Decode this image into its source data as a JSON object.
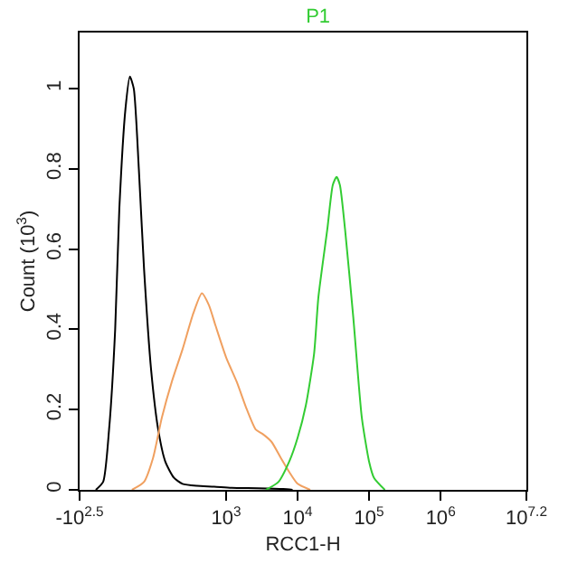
{
  "chart_data": {
    "type": "line",
    "title": "P1",
    "xlabel": "RCC1-H",
    "ylabel": "Count (10$^{3}$)",
    "log": "x",
    "xlim": [
      8.9,
      15848932
    ],
    "xticks": [
      {
        "value": 8.9,
        "label": "-10$^{2.5}$"
      },
      {
        "value": 1000,
        "label": "10$^{3}$"
      },
      {
        "value": 10000,
        "label": "10$^{4}$"
      },
      {
        "value": 100000,
        "label": "10$^{5}$"
      },
      {
        "value": 1000000,
        "label": "10$^{6}$"
      },
      {
        "value": 15848932,
        "label": "10$^{7.2}$"
      }
    ],
    "ylim": [
      0,
      1.14
    ],
    "yticks": [
      0,
      0.2,
      0.4,
      0.6,
      0.8,
      1
    ],
    "marker": "none",
    "line_style": "solid",
    "series": [
      {
        "color": "#000000",
        "x": [
          15,
          19,
          23,
          28,
          32,
          39,
          45,
          51,
          60,
          71,
          89,
          112,
          141,
          186,
          245,
          390,
          680,
          1200,
          2800,
          6300,
          8500
        ],
        "values": [
          0,
          0.02,
          0.15,
          0.4,
          0.7,
          0.95,
          1.03,
          1.0,
          0.8,
          0.55,
          0.3,
          0.15,
          0.07,
          0.03,
          0.015,
          0.01,
          0.008,
          0.005,
          0.004,
          0.002,
          0
        ]
      },
      {
        "color": "#f0a060",
        "x": [
          48,
          71,
          95,
          126,
          174,
          245,
          347,
          457,
          575,
          708,
          1000,
          1400,
          1950,
          2600,
          3200,
          4300,
          5800,
          7600,
          10000,
          15000
        ],
        "values": [
          0,
          0.02,
          0.08,
          0.18,
          0.27,
          0.35,
          0.44,
          0.49,
          0.46,
          0.41,
          0.33,
          0.27,
          0.2,
          0.15,
          0.14,
          0.12,
          0.08,
          0.045,
          0.015,
          0
        ]
      },
      {
        "color": "#33cc33",
        "x": [
          3600,
          5400,
          7600,
          10000,
          13000,
          17000,
          19500,
          26000,
          31000,
          35000,
          39000,
          46000,
          60000,
          79000,
          100000,
          117000,
          166000
        ],
        "values": [
          0,
          0.02,
          0.07,
          0.13,
          0.21,
          0.34,
          0.48,
          0.65,
          0.76,
          0.78,
          0.76,
          0.65,
          0.43,
          0.18,
          0.07,
          0.03,
          0
        ]
      }
    ]
  }
}
